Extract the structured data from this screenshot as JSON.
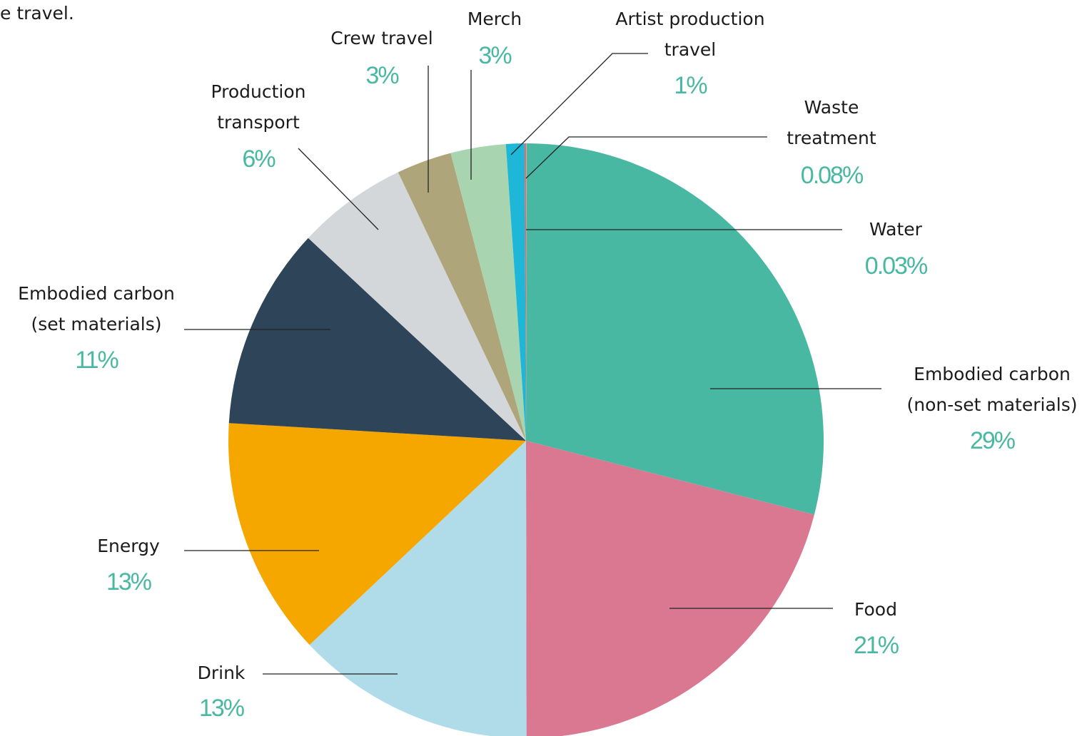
{
  "chart_data": {
    "type": "pie",
    "caption": "e travel.",
    "categories": [
      "Water",
      "Embodied carbon\n(non-set materials)",
      "Food",
      "Drink",
      "Energy",
      "Embodied carbon\n(set materials)",
      "Production\ntransport",
      "Crew travel",
      "Merch",
      "Artist production\ntravel",
      "Waste\ntreatment"
    ],
    "values": [
      0.03,
      29,
      21,
      13,
      13,
      11,
      6,
      3,
      3,
      1,
      0.08
    ],
    "value_labels": [
      "0.03%",
      "29%",
      "21%",
      "13%",
      "13%",
      "11%",
      "6%",
      "3%",
      "3%",
      "1%",
      "0.08%"
    ],
    "colors": [
      "#e8a0a0",
      "#49b8a2",
      "#db7891",
      "#b0dcea",
      "#f5a700",
      "#2d4459",
      "#d3d7da",
      "#afa57a",
      "#a8d5b0",
      "#1fb7d8",
      "#e06a6e"
    ]
  }
}
